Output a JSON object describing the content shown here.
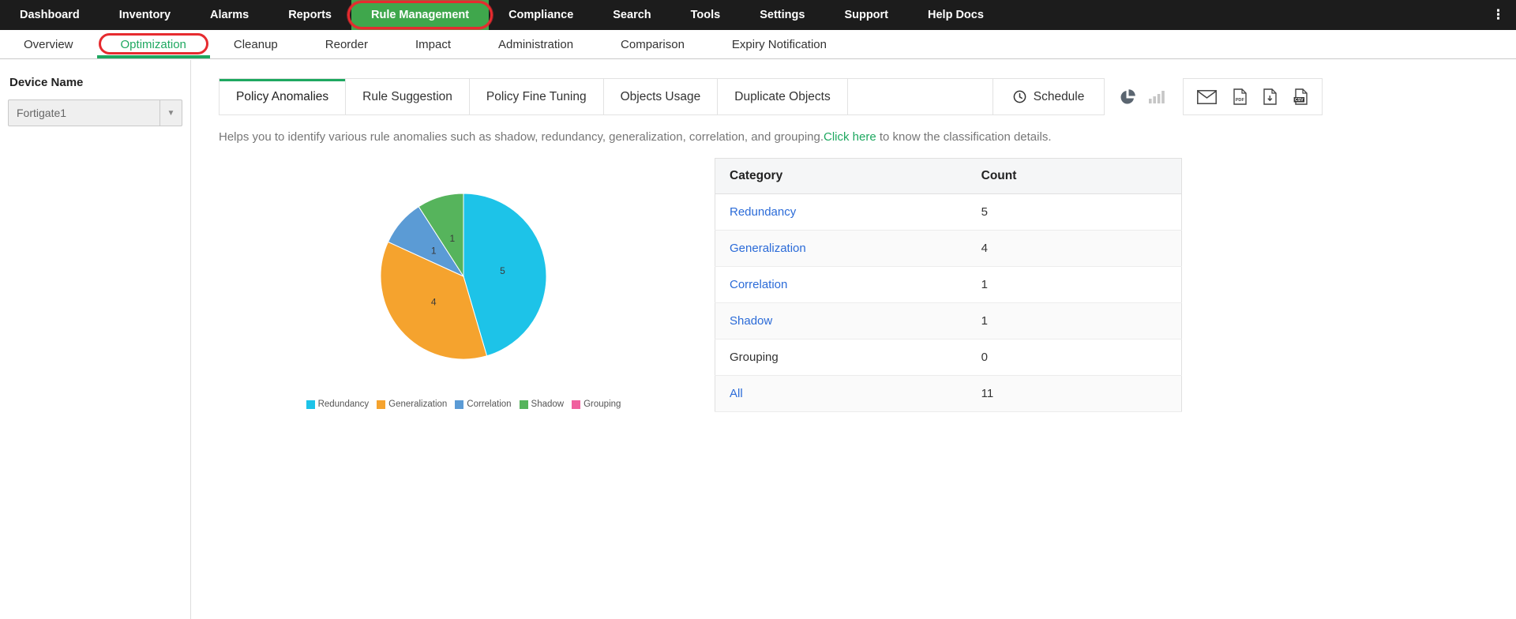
{
  "topnav": {
    "items": [
      {
        "label": "Dashboard"
      },
      {
        "label": "Inventory"
      },
      {
        "label": "Alarms"
      },
      {
        "label": "Reports"
      },
      {
        "label": "Rule Management"
      },
      {
        "label": "Compliance"
      },
      {
        "label": "Search"
      },
      {
        "label": "Tools"
      },
      {
        "label": "Settings"
      },
      {
        "label": "Support"
      },
      {
        "label": "Help Docs"
      }
    ],
    "active": "Rule Management",
    "overflow_menu_icon": "⋮"
  },
  "subnav": {
    "items": [
      {
        "label": "Overview"
      },
      {
        "label": "Optimization"
      },
      {
        "label": "Cleanup"
      },
      {
        "label": "Reorder"
      },
      {
        "label": "Impact"
      },
      {
        "label": "Administration"
      },
      {
        "label": "Comparison"
      },
      {
        "label": "Expiry Notification"
      }
    ],
    "active": "Optimization"
  },
  "sidebar": {
    "device_name_label": "Device Name",
    "device_value": "Fortigate1"
  },
  "toolbar": {
    "tabs": [
      {
        "label": "Policy Anomalies"
      },
      {
        "label": "Rule Suggestion"
      },
      {
        "label": "Policy Fine Tuning"
      },
      {
        "label": "Objects Usage"
      },
      {
        "label": "Duplicate Objects"
      }
    ],
    "active_tab": "Policy Anomalies",
    "schedule_label": "Schedule"
  },
  "description": {
    "text_before": "Helps you to identify various rule anomalies such as shadow, redundancy, generalization, correlation, and grouping.",
    "link_text": "Click here",
    "text_after": " to know the classification details."
  },
  "chart_data": {
    "type": "pie",
    "title": "",
    "categories": [
      "Redundancy",
      "Generalization",
      "Correlation",
      "Shadow",
      "Grouping"
    ],
    "values": [
      5,
      4,
      1,
      1,
      0
    ],
    "colors": [
      "#1dc3e8",
      "#f5a32e",
      "#5b9bd5",
      "#56b45c",
      "#f0609e"
    ],
    "legend_position": "bottom",
    "start_angle_deg": 0,
    "direction": "clockwise"
  },
  "table": {
    "headers": [
      "Category",
      "Count"
    ],
    "rows": [
      {
        "category": "Redundancy",
        "count": "5",
        "link": true
      },
      {
        "category": "Generalization",
        "count": "4",
        "link": true
      },
      {
        "category": "Correlation",
        "count": "1",
        "link": true
      },
      {
        "category": "Shadow",
        "count": "1",
        "link": true
      },
      {
        "category": "Grouping",
        "count": "0",
        "link": false
      },
      {
        "category": "All",
        "count": "11",
        "link": true
      }
    ]
  },
  "colors": {
    "topnav_bg": "#1c1c1c",
    "active_nav_bg": "#3fa74c",
    "accent_green": "#1ea860",
    "link_blue": "#2b6bd8",
    "annotation_red": "#e62b2f"
  }
}
